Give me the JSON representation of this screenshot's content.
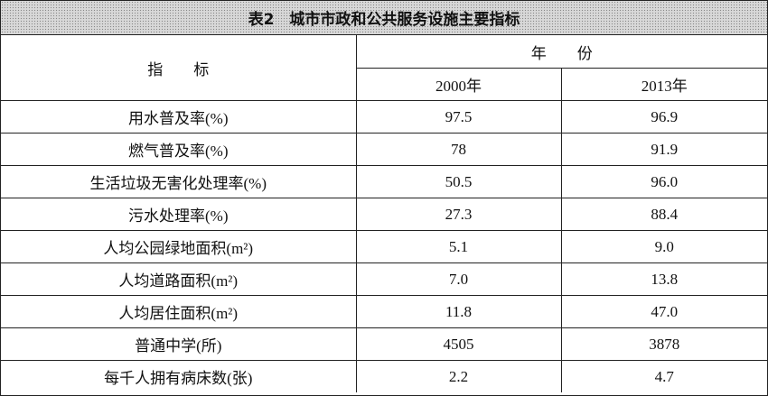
{
  "title": "表2　城市市政和公共服务设施主要指标",
  "table": {
    "header": {
      "indicator": "指　　标",
      "year_group": "年　　份",
      "years": [
        "2000年",
        "2013年"
      ]
    },
    "rows": [
      [
        "用水普及率(%)",
        "97.5",
        "96.9"
      ],
      [
        "燃气普及率(%)",
        "78",
        "91.9"
      ],
      [
        "生活垃圾无害化处理率(%)",
        "50.5",
        "96.0"
      ],
      [
        "污水处理率(%)",
        "27.3",
        "88.4"
      ],
      [
        "人均公园绿地面积(m²)",
        "5.1",
        "9.0"
      ],
      [
        "人均道路面积(m²)",
        "7.0",
        "13.8"
      ],
      [
        "人均居住面积(m²)",
        "11.8",
        "47.0"
      ],
      [
        "普通中学(所)",
        "4505",
        "3878"
      ],
      [
        "每千人拥有病床数(张)",
        "2.2",
        "4.7"
      ]
    ]
  }
}
